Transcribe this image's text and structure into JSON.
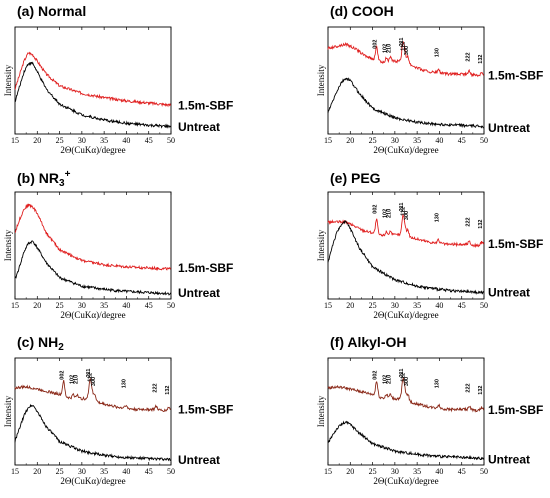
{
  "chart_data": [
    {
      "type": "line",
      "title": "(a) Normal",
      "title_parts": {
        "main": "(a) Normal",
        "sup": "",
        "sub": "",
        "tail": ""
      },
      "xlabel": "2Θ(CuKα)/degree",
      "ylabel": "Intensity",
      "xlim": [
        15,
        50
      ],
      "x_ticks": [
        "15",
        "20",
        "25",
        "30",
        "35",
        "40",
        "45",
        "50"
      ],
      "series": [
        {
          "name": "1.5m-SBF",
          "color": "#e02020",
          "shape": "amorphous",
          "points": [
            [
              15,
              0.42
            ],
            [
              16,
              0.55
            ],
            [
              17,
              0.68
            ],
            [
              18,
              0.76
            ],
            [
              19,
              0.74
            ],
            [
              20,
              0.68
            ],
            [
              22,
              0.56
            ],
            [
              25,
              0.45
            ],
            [
              30,
              0.38
            ],
            [
              35,
              0.34
            ],
            [
              40,
              0.31
            ],
            [
              45,
              0.29
            ],
            [
              50,
              0.27
            ]
          ]
        },
        {
          "name": "Untreat",
          "color": "#000000",
          "shape": "amorphous",
          "points": [
            [
              15,
              0.3
            ],
            [
              16,
              0.44
            ],
            [
              17,
              0.58
            ],
            [
              18,
              0.66
            ],
            [
              19,
              0.66
            ],
            [
              20,
              0.58
            ],
            [
              22,
              0.42
            ],
            [
              25,
              0.28
            ],
            [
              30,
              0.18
            ],
            [
              35,
              0.13
            ],
            [
              40,
              0.1
            ],
            [
              45,
              0.08
            ],
            [
              50,
              0.07
            ]
          ]
        }
      ],
      "peak_labels": []
    },
    {
      "type": "line",
      "title": "(b) NR3+",
      "title_parts": {
        "main": "(b) NR",
        "sup": "+",
        "sub": "3",
        "tail": ""
      },
      "xlabel": "2Θ(CuKα)/degree",
      "ylabel": "Intensity",
      "xlim": [
        15,
        50
      ],
      "x_ticks": [
        "15",
        "20",
        "25",
        "30",
        "35",
        "40",
        "45",
        "50"
      ],
      "series": [
        {
          "name": "1.5m-SBF",
          "color": "#e02020",
          "shape": "amorphous",
          "points": [
            [
              15,
              0.62
            ],
            [
              16,
              0.74
            ],
            [
              17,
              0.84
            ],
            [
              18,
              0.88
            ],
            [
              19,
              0.86
            ],
            [
              20,
              0.8
            ],
            [
              22,
              0.62
            ],
            [
              25,
              0.46
            ],
            [
              30,
              0.36
            ],
            [
              35,
              0.32
            ],
            [
              40,
              0.3
            ],
            [
              45,
              0.29
            ],
            [
              50,
              0.28
            ]
          ]
        },
        {
          "name": "Untreat",
          "color": "#000000",
          "shape": "amorphous",
          "points": [
            [
              15,
              0.18
            ],
            [
              16,
              0.3
            ],
            [
              17,
              0.44
            ],
            [
              18,
              0.52
            ],
            [
              19,
              0.54
            ],
            [
              20,
              0.48
            ],
            [
              22,
              0.34
            ],
            [
              25,
              0.2
            ],
            [
              30,
              0.12
            ],
            [
              35,
              0.09
            ],
            [
              40,
              0.07
            ],
            [
              45,
              0.06
            ],
            [
              50,
              0.05
            ]
          ]
        }
      ],
      "peak_labels": []
    },
    {
      "type": "line",
      "title": "(c) NH2",
      "title_parts": {
        "main": "(c) NH",
        "sup": "",
        "sub": "2",
        "tail": ""
      },
      "xlabel": "2Θ(CuKα)/degree",
      "ylabel": "Intensity",
      "xlim": [
        15,
        50
      ],
      "x_ticks": [
        "15",
        "20",
        "25",
        "30",
        "35",
        "40",
        "45",
        "50"
      ],
      "series": [
        {
          "name": "1.5m-SBF",
          "color": "#8b2a1a",
          "shape": "crystal",
          "points": [
            [
              15,
              0.72
            ],
            [
              17,
              0.73
            ],
            [
              19,
              0.72
            ],
            [
              21,
              0.7
            ],
            [
              23,
              0.68
            ],
            [
              25,
              0.66
            ],
            [
              26,
              0.64
            ],
            [
              28,
              0.62
            ],
            [
              30,
              0.62
            ],
            [
              32,
              0.62
            ],
            [
              34,
              0.58
            ],
            [
              36,
              0.56
            ],
            [
              38,
              0.54
            ],
            [
              40,
              0.53
            ],
            [
              42,
              0.52
            ],
            [
              44,
              0.52
            ],
            [
              46,
              0.52
            ],
            [
              48,
              0.51
            ],
            [
              50,
              0.51
            ]
          ]
        },
        {
          "name": "Untreat",
          "color": "#000000",
          "shape": "amorphous",
          "points": [
            [
              15,
              0.22
            ],
            [
              16,
              0.34
            ],
            [
              17,
              0.46
            ],
            [
              18,
              0.54
            ],
            [
              19,
              0.56
            ],
            [
              20,
              0.5
            ],
            [
              22,
              0.36
            ],
            [
              25,
              0.22
            ],
            [
              30,
              0.13
            ],
            [
              35,
              0.09
            ],
            [
              40,
              0.07
            ],
            [
              45,
              0.06
            ],
            [
              50,
              0.05
            ]
          ]
        }
      ],
      "peak_labels": [
        "002",
        "102",
        "210",
        "211",
        "112",
        "300",
        "130",
        "222",
        "132"
      ]
    },
    {
      "type": "line",
      "title": "(d) COOH",
      "title_parts": {
        "main": "(d) COOH",
        "sup": "",
        "sub": "",
        "tail": ""
      },
      "xlabel": "2Θ(CuKα)/degree",
      "ylabel": "Intensity",
      "xlim": [
        15,
        50
      ],
      "x_ticks": [
        "15",
        "20",
        "25",
        "30",
        "35",
        "40",
        "45",
        "50"
      ],
      "series": [
        {
          "name": "1.5m-SBF",
          "color": "#e02020",
          "shape": "crystal",
          "points": [
            [
              15,
              0.8
            ],
            [
              17,
              0.82
            ],
            [
              19,
              0.84
            ],
            [
              21,
              0.8
            ],
            [
              23,
              0.74
            ],
            [
              25,
              0.7
            ],
            [
              26,
              0.68
            ],
            [
              28,
              0.67
            ],
            [
              30,
              0.68
            ],
            [
              32,
              0.68
            ],
            [
              34,
              0.64
            ],
            [
              36,
              0.6
            ],
            [
              38,
              0.58
            ],
            [
              40,
              0.57
            ],
            [
              42,
              0.56
            ],
            [
              44,
              0.56
            ],
            [
              46,
              0.56
            ],
            [
              48,
              0.55
            ],
            [
              50,
              0.55
            ]
          ]
        },
        {
          "name": "Untreat",
          "color": "#000000",
          "shape": "amorphous",
          "points": [
            [
              15,
              0.2
            ],
            [
              16,
              0.3
            ],
            [
              17,
              0.4
            ],
            [
              18,
              0.48
            ],
            [
              19,
              0.52
            ],
            [
              20,
              0.5
            ],
            [
              22,
              0.38
            ],
            [
              25,
              0.24
            ],
            [
              30,
              0.15
            ],
            [
              35,
              0.11
            ],
            [
              40,
              0.09
            ],
            [
              45,
              0.08
            ],
            [
              50,
              0.07
            ]
          ]
        }
      ],
      "peak_labels": [
        "002",
        "102",
        "210",
        "211",
        "112",
        "300",
        "130",
        "222",
        "132"
      ]
    },
    {
      "type": "line",
      "title": "(e) PEG",
      "title_parts": {
        "main": "(e) PEG",
        "sup": "",
        "sub": "",
        "tail": ""
      },
      "xlabel": "2Θ(CuKα)/degree",
      "ylabel": "Intensity",
      "xlim": [
        15,
        50
      ],
      "x_ticks": [
        "15",
        "20",
        "25",
        "30",
        "35",
        "40",
        "45",
        "50"
      ],
      "series": [
        {
          "name": "1.5m-SBF",
          "color": "#e02020",
          "shape": "crystal",
          "points": [
            [
              15,
              0.72
            ],
            [
              17,
              0.72
            ],
            [
              19,
              0.72
            ],
            [
              21,
              0.68
            ],
            [
              23,
              0.64
            ],
            [
              25,
              0.62
            ],
            [
              26,
              0.6
            ],
            [
              28,
              0.59
            ],
            [
              30,
              0.6
            ],
            [
              32,
              0.6
            ],
            [
              34,
              0.57
            ],
            [
              36,
              0.55
            ],
            [
              38,
              0.53
            ],
            [
              40,
              0.52
            ],
            [
              42,
              0.51
            ],
            [
              44,
              0.51
            ],
            [
              46,
              0.51
            ],
            [
              48,
              0.5
            ],
            [
              50,
              0.5
            ]
          ]
        },
        {
          "name": "Untreat",
          "color": "#000000",
          "shape": "amorphous",
          "points": [
            [
              15,
              0.34
            ],
            [
              16,
              0.5
            ],
            [
              17,
              0.62
            ],
            [
              18,
              0.7
            ],
            [
              19,
              0.72
            ],
            [
              20,
              0.66
            ],
            [
              22,
              0.48
            ],
            [
              25,
              0.3
            ],
            [
              30,
              0.18
            ],
            [
              35,
              0.12
            ],
            [
              40,
              0.09
            ],
            [
              45,
              0.07
            ],
            [
              50,
              0.06
            ]
          ]
        }
      ],
      "peak_labels": [
        "002",
        "102",
        "210",
        "211",
        "112",
        "300",
        "130",
        "222",
        "132"
      ]
    },
    {
      "type": "line",
      "title": "(f) Alkyl-OH",
      "title_parts": {
        "main": "(f) Alkyl-OH",
        "sup": "",
        "sub": "",
        "tail": ""
      },
      "xlabel": "2Θ(CuKα)/degree",
      "ylabel": "Intensity",
      "xlim": [
        15,
        50
      ],
      "x_ticks": [
        "15",
        "20",
        "25",
        "30",
        "35",
        "40",
        "45",
        "50"
      ],
      "series": [
        {
          "name": "1.5m-SBF",
          "color": "#8b2a1a",
          "shape": "crystal",
          "points": [
            [
              15,
              0.72
            ],
            [
              17,
              0.73
            ],
            [
              19,
              0.72
            ],
            [
              21,
              0.7
            ],
            [
              23,
              0.68
            ],
            [
              25,
              0.66
            ],
            [
              26,
              0.64
            ],
            [
              28,
              0.62
            ],
            [
              30,
              0.62
            ],
            [
              32,
              0.62
            ],
            [
              34,
              0.58
            ],
            [
              36,
              0.56
            ],
            [
              38,
              0.54
            ],
            [
              40,
              0.53
            ],
            [
              42,
              0.52
            ],
            [
              44,
              0.52
            ],
            [
              46,
              0.52
            ],
            [
              48,
              0.51
            ],
            [
              50,
              0.51
            ]
          ]
        },
        {
          "name": "Untreat",
          "color": "#000000",
          "shape": "amorphous",
          "points": [
            [
              15,
              0.2
            ],
            [
              16,
              0.28
            ],
            [
              17,
              0.34
            ],
            [
              18,
              0.38
            ],
            [
              19,
              0.4
            ],
            [
              20,
              0.38
            ],
            [
              22,
              0.3
            ],
            [
              25,
              0.2
            ],
            [
              30,
              0.13
            ],
            [
              35,
              0.1
            ],
            [
              40,
              0.08
            ],
            [
              45,
              0.07
            ],
            [
              50,
              0.06
            ]
          ]
        }
      ],
      "peak_labels": [
        "002",
        "102",
        "210",
        "211",
        "112",
        "300",
        "130",
        "222",
        "132"
      ]
    }
  ]
}
